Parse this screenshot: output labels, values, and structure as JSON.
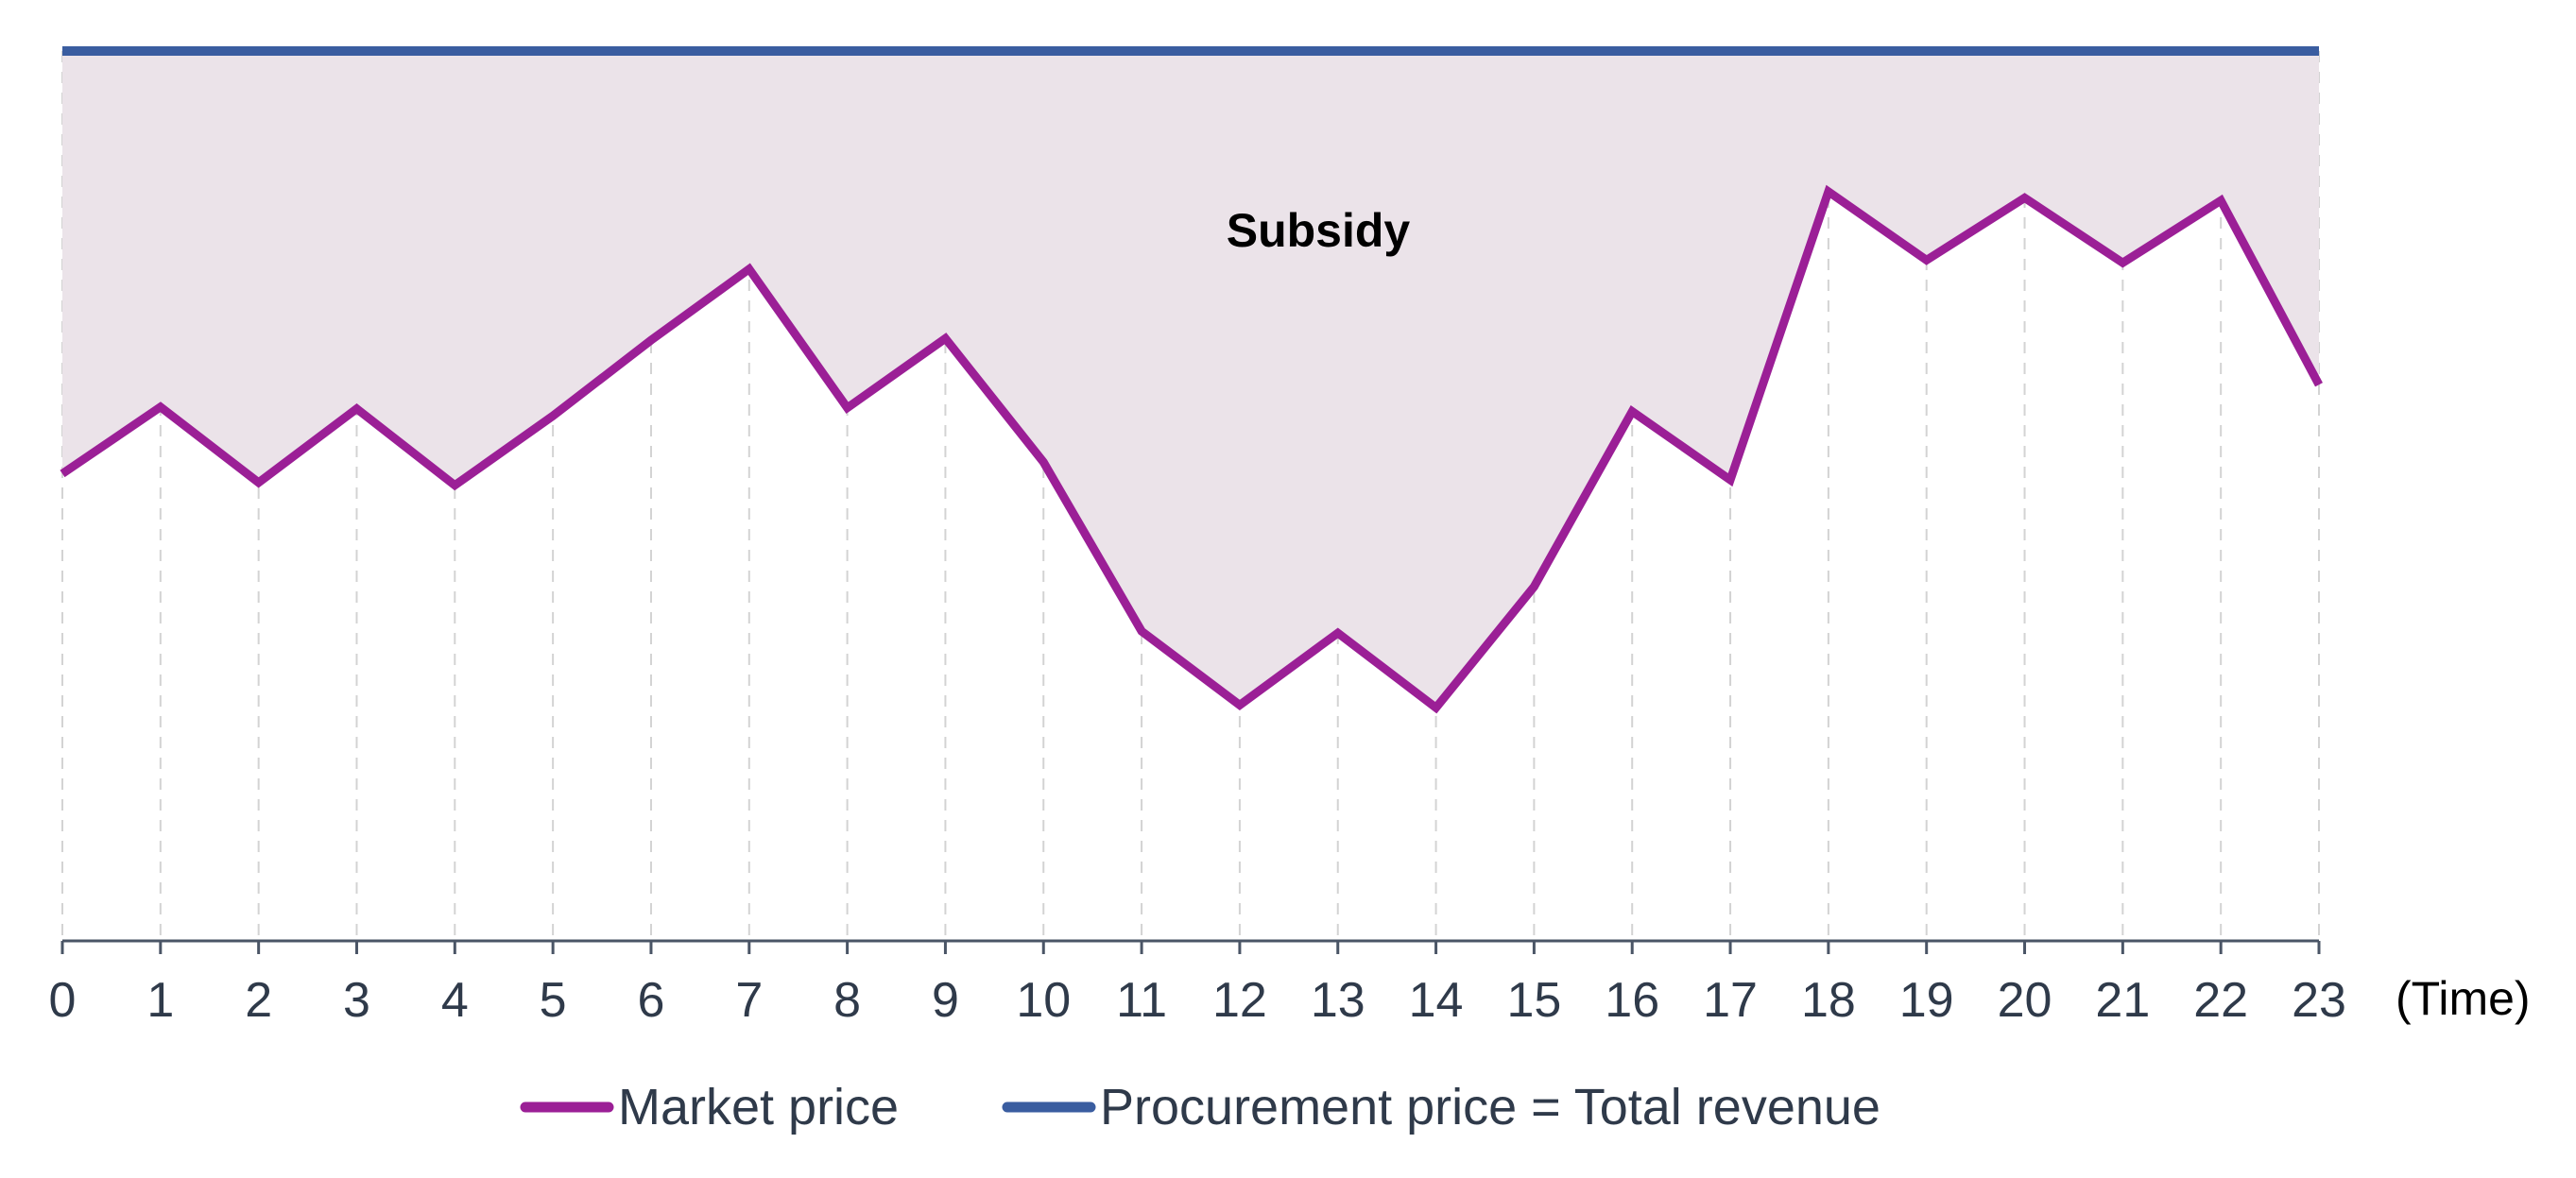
{
  "chart_data": {
    "type": "line",
    "x": [
      0,
      1,
      2,
      3,
      4,
      5,
      6,
      7,
      8,
      9,
      10,
      11,
      12,
      13,
      14,
      15,
      16,
      17,
      18,
      19,
      20,
      21,
      22,
      23
    ],
    "x_ticks": [
      "0",
      "1",
      "2",
      "3",
      "4",
      "5",
      "6",
      "7",
      "8",
      "9",
      "10",
      "11",
      "12",
      "13",
      "14",
      "15",
      "16",
      "17",
      "18",
      "19",
      "20",
      "21",
      "22",
      "23"
    ],
    "xlabel": "(Time)",
    "ylabel": "",
    "ylim": [
      0,
      100
    ],
    "xlim": [
      0,
      23
    ],
    "grid": {
      "vertical": true,
      "horizontal": false
    },
    "legend": "bottom-center",
    "series": [
      {
        "name": "Market price",
        "color": "#9b1f96",
        "values": [
          52.5,
          60,
          51.5,
          59.8,
          51.2,
          59,
          67.5,
          75.5,
          59.9,
          67.7,
          53.8,
          34.8,
          26.5,
          34.6,
          26.2,
          39.8,
          59.5,
          51.8,
          84.2,
          76.5,
          83.5,
          76.2,
          83.2,
          62.5
        ]
      },
      {
        "name": "Procurement price = Total revenue",
        "color": "#3a5da0",
        "values": [
          100,
          100,
          100,
          100,
          100,
          100,
          100,
          100,
          100,
          100,
          100,
          100,
          100,
          100,
          100,
          100,
          100,
          100,
          100,
          100,
          100,
          100,
          100,
          100
        ]
      }
    ],
    "annotations": [
      {
        "text": "Subsidy",
        "x": 12.8,
        "y": 78
      }
    ],
    "shaded_region": {
      "between": [
        "Procurement price = Total revenue",
        "Market price"
      ],
      "color": "#ebe3e9"
    }
  }
}
